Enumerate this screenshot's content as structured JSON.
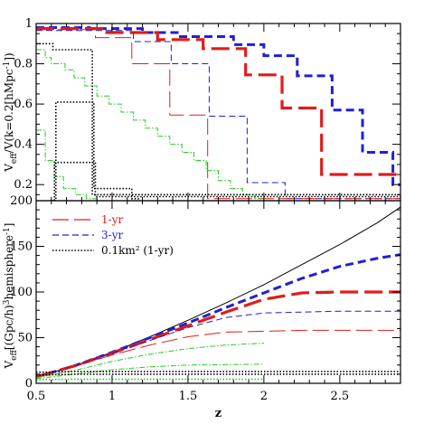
{
  "chart_data": [
    {
      "type": "line",
      "panel": "top",
      "ylabel_main": "V",
      "ylabel_sub": "eff",
      "ylabel_rest": "/V(k=0.2[hMpc",
      "ylabel_sup": "-1",
      "ylabel_end": "])",
      "xlim": [
        0.5,
        2.9
      ],
      "ylim": [
        0.12,
        1.0
      ],
      "yticks": [
        "0.2",
        "0.4",
        "0.6",
        "0.8",
        "1"
      ],
      "series": [
        {
          "style": "blue-thick",
          "color": "#1f1fd6",
          "x": [
            0.5,
            0.85,
            0.85,
            1.2,
            1.2,
            1.45,
            1.45,
            1.8,
            1.8,
            2.0,
            2.0,
            2.22,
            2.22,
            2.45,
            2.45,
            2.65,
            2.65,
            2.85,
            2.85,
            2.9
          ],
          "y": [
            0.98,
            0.98,
            0.975,
            0.975,
            0.955,
            0.955,
            0.935,
            0.935,
            0.895,
            0.895,
            0.84,
            0.84,
            0.74,
            0.74,
            0.57,
            0.57,
            0.36,
            0.36,
            0.2,
            0.2
          ]
        },
        {
          "style": "red-thick",
          "color": "#e01c1c",
          "x": [
            0.5,
            0.95,
            0.95,
            1.3,
            1.3,
            1.6,
            1.6,
            1.88,
            1.88,
            2.12,
            2.12,
            2.38,
            2.38,
            2.9
          ],
          "y": [
            0.975,
            0.975,
            0.955,
            0.955,
            0.92,
            0.92,
            0.875,
            0.875,
            0.745,
            0.745,
            0.58,
            0.58,
            0.25,
            0.25
          ]
        },
        {
          "style": "blue-thin",
          "color": "#1f1fd6",
          "x": [
            0.5,
            1.14,
            1.14,
            1.39,
            1.39,
            1.64,
            1.64,
            1.89,
            1.89,
            2.14,
            2.14,
            2.9
          ],
          "y": [
            0.965,
            0.965,
            0.91,
            0.91,
            0.8,
            0.8,
            0.54,
            0.54,
            0.21,
            0.21,
            0.13,
            0.13
          ]
        },
        {
          "style": "red-thin",
          "color": "#e01c1c",
          "x": [
            0.5,
            0.89,
            0.89,
            1.13,
            1.13,
            1.38,
            1.38,
            1.63,
            1.63,
            1.88,
            1.88,
            2.9
          ],
          "y": [
            0.97,
            0.97,
            0.93,
            0.93,
            0.8,
            0.8,
            0.545,
            0.545,
            0.13,
            0.13,
            0.13,
            0.13
          ]
        },
        {
          "style": "green",
          "color": "#22cc22",
          "x": [
            0.5,
            0.56,
            0.56,
            0.6,
            0.6,
            0.69,
            0.69,
            0.75,
            0.75,
            0.82,
            0.82,
            0.9,
            0.9,
            0.98,
            0.98,
            1.06,
            1.06,
            1.14,
            1.14,
            1.22,
            1.22,
            1.3,
            1.3,
            1.38,
            1.38,
            1.46,
            1.46,
            1.54,
            1.54,
            1.62,
            1.62,
            1.7,
            1.7,
            1.78,
            1.78,
            1.86,
            1.86,
            1.94,
            1.94,
            2.0
          ],
          "y": [
            0.87,
            0.87,
            0.83,
            0.83,
            0.8,
            0.8,
            0.77,
            0.77,
            0.73,
            0.73,
            0.69,
            0.69,
            0.64,
            0.64,
            0.6,
            0.6,
            0.56,
            0.56,
            0.52,
            0.52,
            0.48,
            0.48,
            0.44,
            0.44,
            0.4,
            0.4,
            0.36,
            0.36,
            0.32,
            0.32,
            0.27,
            0.27,
            0.22,
            0.22,
            0.18,
            0.18,
            0.15,
            0.15,
            0.13,
            0.13
          ]
        },
        {
          "style": "green",
          "color": "#22cc22",
          "x": [
            0.5,
            0.56,
            0.56,
            0.62,
            0.62,
            0.68,
            0.68,
            0.76,
            0.76,
            0.83,
            0.83,
            0.9,
            0.9,
            1.0
          ],
          "y": [
            0.47,
            0.47,
            0.32,
            0.32,
            0.24,
            0.24,
            0.18,
            0.18,
            0.15,
            0.15,
            0.13,
            0.13,
            0.12,
            0.12
          ]
        },
        {
          "style": "black-dotted",
          "color": "#000000",
          "x": [
            0.5,
            0.61,
            0.61,
            0.87,
            0.87,
            2.9
          ],
          "y": [
            0.9,
            0.9,
            0.87,
            0.87,
            0.15,
            0.15
          ]
        },
        {
          "style": "black-dotted",
          "color": "#000000",
          "x": [
            0.6,
            0.63,
            0.63,
            0.88,
            0.88,
            1.13,
            1.13,
            1.18
          ],
          "y": [
            0.12,
            0.12,
            0.61,
            0.61,
            0.18,
            0.18,
            0.13,
            0.13
          ]
        },
        {
          "style": "black-dotted",
          "color": "#000000",
          "x": [
            0.6,
            0.62,
            0.62,
            0.89,
            0.89,
            2.9
          ],
          "y": [
            0.12,
            0.12,
            0.31,
            0.31,
            0.14,
            0.14
          ]
        }
      ]
    },
    {
      "type": "line",
      "panel": "bottom",
      "xlabel": "z",
      "ylabel_main": "V",
      "ylabel_sub": "eff",
      "ylabel_rest": "[(Gpc/h)",
      "ylabel_sup": "3",
      "ylabel_end": "hemisphere",
      "ylabel_sup2": "-1",
      "ylabel_tail": "]",
      "xlim": [
        0.5,
        2.9
      ],
      "ylim": [
        0,
        200
      ],
      "xticks": [
        "0.5",
        "1",
        "1.5",
        "2",
        "2.5"
      ],
      "yticks": [
        "0",
        "50",
        "100",
        "150",
        "200"
      ],
      "legend": [
        {
          "label": "1-yr",
          "color": "#e01c1c",
          "style": "long-dash"
        },
        {
          "label": "3-yr",
          "color": "#1f1fd6",
          "style": "short-dash"
        },
        {
          "label": "0.1km² (1-yr)",
          "color": "#000000",
          "style": "dotted"
        }
      ],
      "series": [
        {
          "style": "black-solid",
          "color": "#000000",
          "x": [
            0.5,
            0.75,
            1.0,
            1.25,
            1.5,
            1.75,
            2.0,
            2.25,
            2.5,
            2.75,
            2.9
          ],
          "y": [
            7,
            19,
            34,
            51,
            69,
            88,
            108,
            130,
            152,
            176,
            193
          ]
        },
        {
          "style": "blue-thick",
          "color": "#1f1fd6",
          "x": [
            0.5,
            0.75,
            1.0,
            1.25,
            1.5,
            1.75,
            2.0,
            2.25,
            2.5,
            2.75,
            2.9
          ],
          "y": [
            7,
            19,
            34,
            50,
            66,
            83,
            99,
            115,
            128,
            137,
            141
          ]
        },
        {
          "style": "red-thick",
          "color": "#e01c1c",
          "x": [
            0.5,
            0.75,
            1.0,
            1.25,
            1.5,
            1.75,
            2.0,
            2.25,
            2.5,
            2.75,
            2.9
          ],
          "y": [
            7,
            19,
            33,
            48,
            63,
            78,
            92,
            99,
            100,
            100,
            100
          ]
        },
        {
          "style": "blue-thin",
          "color": "#1f1fd6",
          "x": [
            0.5,
            0.75,
            1.0,
            1.25,
            1.5,
            1.75,
            2.0,
            2.25,
            2.5,
            2.75,
            2.9
          ],
          "y": [
            7,
            19,
            33,
            47,
            61,
            72,
            77,
            78,
            79,
            79,
            79
          ]
        },
        {
          "style": "red-thin",
          "color": "#e01c1c",
          "x": [
            0.5,
            0.75,
            1.0,
            1.25,
            1.5,
            1.75,
            2.0,
            2.25,
            2.5,
            2.75,
            2.9
          ],
          "y": [
            7,
            18,
            31,
            42,
            51,
            56,
            57,
            58,
            58,
            58,
            58
          ]
        },
        {
          "style": "green",
          "color": "#22cc22",
          "x": [
            0.5,
            0.75,
            1.0,
            1.25,
            1.5,
            1.75,
            2.0
          ],
          "y": [
            6,
            14,
            24,
            32,
            38,
            42,
            44
          ]
        },
        {
          "style": "green",
          "color": "#22cc22",
          "x": [
            0.5,
            0.75,
            1.0,
            1.25,
            1.5,
            1.75,
            2.0
          ],
          "y": [
            5,
            10,
            15,
            18,
            20,
            20.5,
            21
          ]
        },
        {
          "style": "black-dotted",
          "color": "#000000",
          "x": [
            0.5,
            0.75,
            1.0,
            1.5,
            2.0,
            2.5,
            2.9
          ],
          "y": [
            12,
            13,
            13,
            13,
            13,
            13,
            13
          ]
        },
        {
          "style": "black-dotted",
          "color": "#000000",
          "x": [
            0.5,
            0.75,
            1.0,
            1.5,
            2.0,
            2.5,
            2.9
          ],
          "y": [
            9,
            10,
            10,
            10,
            10,
            10,
            10
          ]
        },
        {
          "style": "green-dotted",
          "color": "#22cc22",
          "x": [
            0.5,
            0.75,
            1.0,
            1.5,
            2.0
          ],
          "y": [
            4,
            4.5,
            4.5,
            4.5,
            4.5
          ]
        }
      ]
    }
  ]
}
